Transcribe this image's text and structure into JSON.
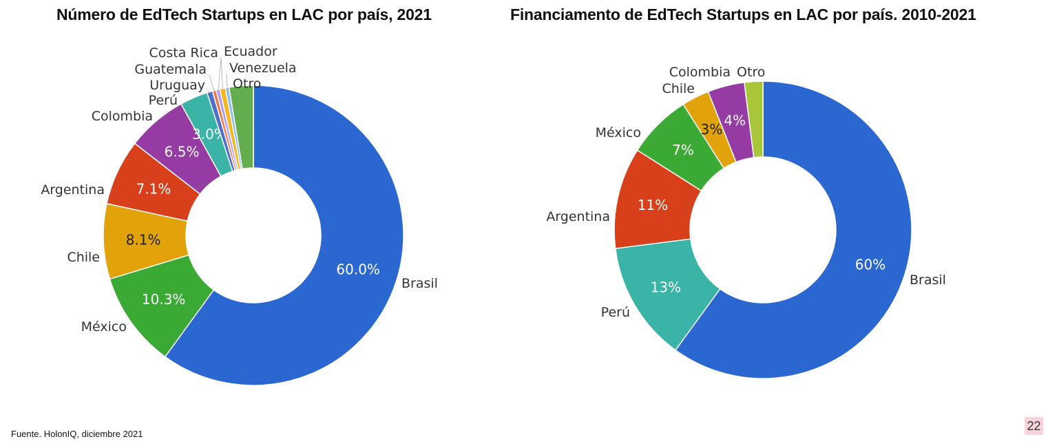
{
  "chart_data": [
    {
      "type": "pie",
      "title": "Número de EdTech Startups en LAC por país, 2021",
      "start": "top",
      "direction": "clockwise",
      "slices": [
        {
          "name": "Brasil",
          "value": 60.0,
          "label": "60.0%",
          "color": "#2b67d0"
        },
        {
          "name": "México",
          "value": 10.3,
          "label": "10.3%",
          "color": "#3aaa35"
        },
        {
          "name": "Chile",
          "value": 8.1,
          "label": "8.1%",
          "color": "#e2a20a"
        },
        {
          "name": "Argentina",
          "value": 7.1,
          "label": "7.1%",
          "color": "#d8401c"
        },
        {
          "name": "Colombia",
          "value": 6.5,
          "label": "6.5%",
          "color": "#963aa4"
        },
        {
          "name": "Perú",
          "value": 3.0,
          "label": "3.0%",
          "color": "#39b4a6"
        },
        {
          "name": "Uruguay",
          "value": 0.6,
          "label": "",
          "color": "#4e6fc8"
        },
        {
          "name": "Guatemala",
          "value": 0.4,
          "label": "",
          "color": "#f07a4f"
        },
        {
          "name": "Costa Rica",
          "value": 0.4,
          "label": "",
          "color": "#b99aec"
        },
        {
          "name": "Ecuador",
          "value": 0.6,
          "label": "",
          "color": "#f2b81f"
        },
        {
          "name": "Venezuela",
          "value": 0.4,
          "label": "",
          "color": "#8fbde8"
        },
        {
          "name": "Otro",
          "value": 2.6,
          "label": "",
          "color": "#64ad4f"
        }
      ]
    },
    {
      "type": "pie",
      "title": "Financiamento de EdTech Startups en LAC por país. 2010-2021",
      "start": "top",
      "direction": "clockwise",
      "slices": [
        {
          "name": "Brasil",
          "value": 60,
          "label": "60%",
          "color": "#2b67d0"
        },
        {
          "name": "Perú",
          "value": 13,
          "label": "13%",
          "color": "#39b4a6"
        },
        {
          "name": "Argentina",
          "value": 11,
          "label": "11%",
          "color": "#d8401c"
        },
        {
          "name": "México",
          "value": 7,
          "label": "7%",
          "color": "#3aaa35"
        },
        {
          "name": "Chile",
          "value": 3,
          "label": "3%",
          "color": "#e2a20a"
        },
        {
          "name": "Colombia",
          "value": 4,
          "label": "4%",
          "color": "#963aa4"
        },
        {
          "name": "Otro",
          "value": 2,
          "label": "",
          "color": "#a9c63a"
        }
      ]
    }
  ],
  "footer": {
    "source": "Fuente. HolonIQ, diciembre 2021",
    "page_number": "22"
  }
}
